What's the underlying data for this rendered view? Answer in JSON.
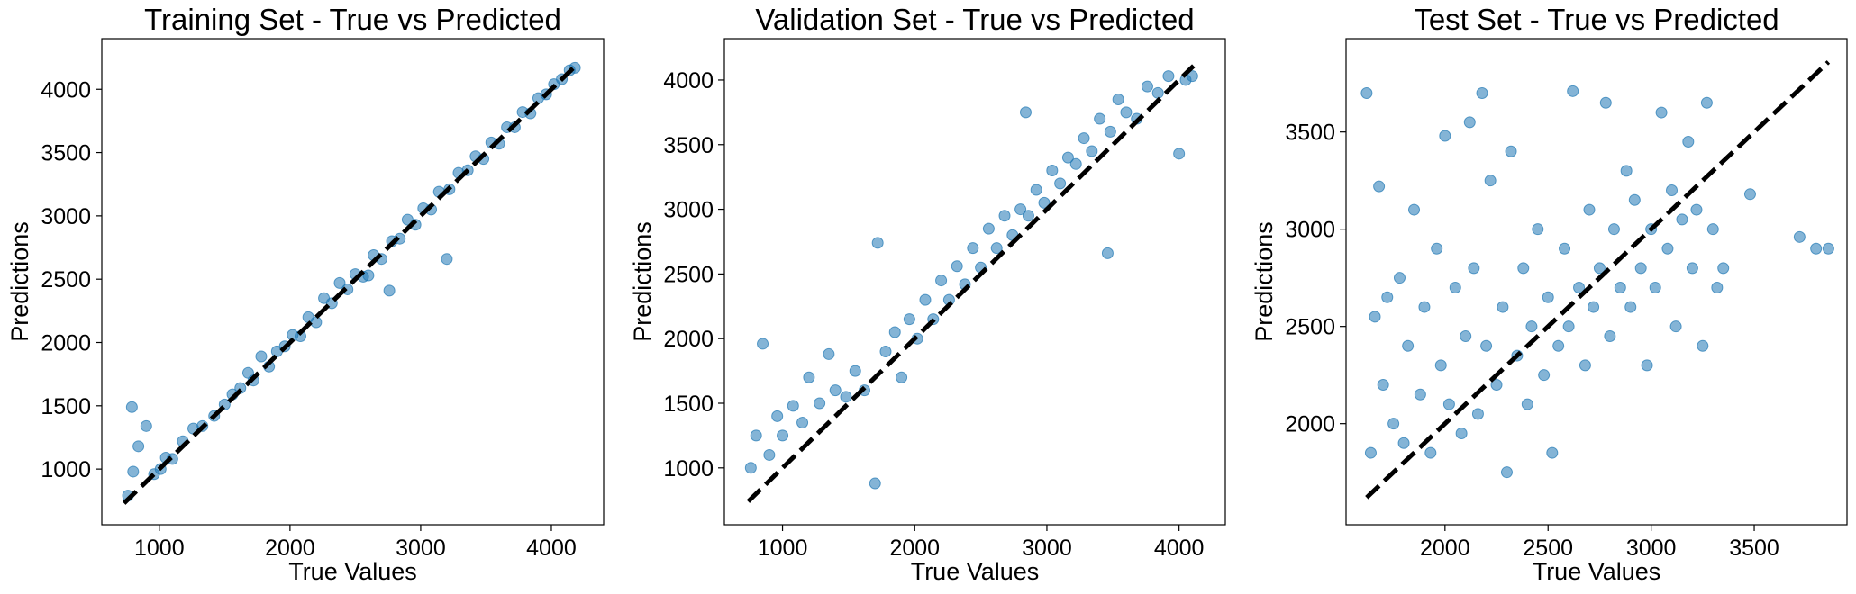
{
  "chart_data": [
    {
      "type": "scatter",
      "title": "Training Set - True vs Predicted",
      "xlabel": "True Values",
      "ylabel": "Predictions",
      "xlim": [
        560,
        4400
      ],
      "ylim": [
        560,
        4400
      ],
      "xticks": [
        1000,
        2000,
        3000,
        4000
      ],
      "yticks": [
        1000,
        1500,
        2000,
        2500,
        3000,
        3500,
        4000
      ],
      "xtick_labels": [
        "1000",
        "2000",
        "3000",
        "4000"
      ],
      "ytick_labels": [
        "1000",
        "1500",
        "2000",
        "2500",
        "3000",
        "3500",
        "4000"
      ],
      "identity_line": [
        730,
        4190
      ],
      "grid": false,
      "point_color": "#1f77b4",
      "series": [
        {
          "points": [
            [
              760,
              790
            ],
            [
              790,
              1490
            ],
            [
              800,
              980
            ],
            [
              840,
              1180
            ],
            [
              900,
              1340
            ],
            [
              960,
              960
            ],
            [
              1010,
              1000
            ],
            [
              1050,
              1090
            ],
            [
              1100,
              1080
            ],
            [
              1180,
              1220
            ],
            [
              1260,
              1320
            ],
            [
              1330,
              1340
            ],
            [
              1420,
              1420
            ],
            [
              1500,
              1510
            ],
            [
              1560,
              1590
            ],
            [
              1620,
              1640
            ],
            [
              1680,
              1760
            ],
            [
              1720,
              1700
            ],
            [
              1780,
              1890
            ],
            [
              1840,
              1810
            ],
            [
              1900,
              1930
            ],
            [
              1960,
              1970
            ],
            [
              2020,
              2060
            ],
            [
              2080,
              2050
            ],
            [
              2140,
              2200
            ],
            [
              2200,
              2160
            ],
            [
              2260,
              2350
            ],
            [
              2320,
              2310
            ],
            [
              2380,
              2470
            ],
            [
              2440,
              2420
            ],
            [
              2500,
              2540
            ],
            [
              2560,
              2520
            ],
            [
              2600,
              2530
            ],
            [
              2640,
              2690
            ],
            [
              2700,
              2660
            ],
            [
              2760,
              2410
            ],
            [
              2780,
              2800
            ],
            [
              2840,
              2820
            ],
            [
              2900,
              2970
            ],
            [
              2960,
              2930
            ],
            [
              3020,
              3060
            ],
            [
              3080,
              3050
            ],
            [
              3140,
              3190
            ],
            [
              3200,
              2660
            ],
            [
              3220,
              3210
            ],
            [
              3290,
              3340
            ],
            [
              3360,
              3360
            ],
            [
              3420,
              3470
            ],
            [
              3480,
              3450
            ],
            [
              3540,
              3580
            ],
            [
              3600,
              3570
            ],
            [
              3660,
              3700
            ],
            [
              3720,
              3700
            ],
            [
              3780,
              3820
            ],
            [
              3840,
              3810
            ],
            [
              3900,
              3930
            ],
            [
              3960,
              3960
            ],
            [
              4020,
              4040
            ],
            [
              4080,
              4080
            ],
            [
              4140,
              4150
            ],
            [
              4180,
              4170
            ]
          ]
        }
      ]
    },
    {
      "type": "scatter",
      "title": "Validation Set - True vs Predicted",
      "xlabel": "True Values",
      "ylabel": "Predictions",
      "xlim": [
        560,
        4350
      ],
      "ylim": [
        560,
        4320
      ],
      "xticks": [
        1000,
        2000,
        3000,
        4000
      ],
      "yticks": [
        1000,
        1500,
        2000,
        2500,
        3000,
        3500,
        4000
      ],
      "xtick_labels": [
        "1000",
        "2000",
        "3000",
        "4000"
      ],
      "ytick_labels": [
        "1000",
        "1500",
        "2000",
        "2500",
        "3000",
        "3500",
        "4000"
      ],
      "identity_line": [
        740,
        4110
      ],
      "grid": false,
      "point_color": "#1f77b4",
      "series": [
        {
          "points": [
            [
              760,
              1000
            ],
            [
              800,
              1250
            ],
            [
              850,
              1960
            ],
            [
              900,
              1100
            ],
            [
              960,
              1400
            ],
            [
              1000,
              1250
            ],
            [
              1080,
              1480
            ],
            [
              1150,
              1350
            ],
            [
              1200,
              1700
            ],
            [
              1280,
              1500
            ],
            [
              1350,
              1880
            ],
            [
              1400,
              1600
            ],
            [
              1480,
              1550
            ],
            [
              1550,
              1750
            ],
            [
              1620,
              1600
            ],
            [
              1700,
              880
            ],
            [
              1720,
              2740
            ],
            [
              1780,
              1900
            ],
            [
              1850,
              2050
            ],
            [
              1900,
              1700
            ],
            [
              1960,
              2150
            ],
            [
              2020,
              2000
            ],
            [
              2080,
              2300
            ],
            [
              2140,
              2150
            ],
            [
              2200,
              2450
            ],
            [
              2260,
              2300
            ],
            [
              2320,
              2560
            ],
            [
              2380,
              2420
            ],
            [
              2440,
              2700
            ],
            [
              2500,
              2550
            ],
            [
              2560,
              2850
            ],
            [
              2620,
              2700
            ],
            [
              2680,
              2950
            ],
            [
              2740,
              2800
            ],
            [
              2800,
              3000
            ],
            [
              2840,
              3750
            ],
            [
              2860,
              2950
            ],
            [
              2920,
              3150
            ],
            [
              2980,
              3050
            ],
            [
              3040,
              3300
            ],
            [
              3100,
              3200
            ],
            [
              3160,
              3400
            ],
            [
              3220,
              3350
            ],
            [
              3280,
              3550
            ],
            [
              3340,
              3450
            ],
            [
              3400,
              3700
            ],
            [
              3460,
              2660
            ],
            [
              3480,
              3600
            ],
            [
              3540,
              3850
            ],
            [
              3600,
              3750
            ],
            [
              3680,
              3700
            ],
            [
              3760,
              3950
            ],
            [
              3840,
              3900
            ],
            [
              3920,
              4030
            ],
            [
              4000,
              3430
            ],
            [
              4050,
              4000
            ],
            [
              4100,
              4030
            ]
          ]
        }
      ]
    },
    {
      "type": "scatter",
      "title": "Test Set - True vs Predicted",
      "xlabel": "True Values",
      "ylabel": "Predictions",
      "xlim": [
        1520,
        3950
      ],
      "ylim": [
        1480,
        3980
      ],
      "xticks": [
        2000,
        2500,
        3000,
        3500
      ],
      "yticks": [
        2000,
        2500,
        3000,
        3500
      ],
      "xtick_labels": [
        "2000",
        "2500",
        "3000",
        "3500"
      ],
      "ytick_labels": [
        "2000",
        "2500",
        "3000",
        "3500"
      ],
      "identity_line": [
        1620,
        3860
      ],
      "grid": false,
      "point_color": "#1f77b4",
      "series": [
        {
          "points": [
            [
              1620,
              3700
            ],
            [
              1640,
              1850
            ],
            [
              1660,
              2550
            ],
            [
              1680,
              3220
            ],
            [
              1700,
              2200
            ],
            [
              1720,
              2650
            ],
            [
              1750,
              2000
            ],
            [
              1780,
              2750
            ],
            [
              1800,
              1900
            ],
            [
              1820,
              2400
            ],
            [
              1850,
              3100
            ],
            [
              1880,
              2150
            ],
            [
              1900,
              2600
            ],
            [
              1930,
              1850
            ],
            [
              1960,
              2900
            ],
            [
              1980,
              2300
            ],
            [
              2000,
              3480
            ],
            [
              2020,
              2100
            ],
            [
              2050,
              2700
            ],
            [
              2080,
              1950
            ],
            [
              2100,
              2450
            ],
            [
              2120,
              3550
            ],
            [
              2140,
              2800
            ],
            [
              2160,
              2050
            ],
            [
              2180,
              3700
            ],
            [
              2200,
              2400
            ],
            [
              2220,
              3250
            ],
            [
              2250,
              2200
            ],
            [
              2280,
              2600
            ],
            [
              2300,
              1750
            ],
            [
              2320,
              3400
            ],
            [
              2350,
              2350
            ],
            [
              2380,
              2800
            ],
            [
              2400,
              2100
            ],
            [
              2420,
              2500
            ],
            [
              2450,
              3000
            ],
            [
              2480,
              2250
            ],
            [
              2500,
              2650
            ],
            [
              2520,
              1850
            ],
            [
              2550,
              2400
            ],
            [
              2580,
              2900
            ],
            [
              2600,
              2500
            ],
            [
              2620,
              3710
            ],
            [
              2650,
              2700
            ],
            [
              2680,
              2300
            ],
            [
              2700,
              3100
            ],
            [
              2720,
              2600
            ],
            [
              2750,
              2800
            ],
            [
              2780,
              3650
            ],
            [
              2800,
              2450
            ],
            [
              2820,
              3000
            ],
            [
              2850,
              2700
            ],
            [
              2880,
              3300
            ],
            [
              2900,
              2600
            ],
            [
              2920,
              3150
            ],
            [
              2950,
              2800
            ],
            [
              2980,
              2300
            ],
            [
              3000,
              3000
            ],
            [
              3020,
              2700
            ],
            [
              3050,
              3600
            ],
            [
              3080,
              2900
            ],
            [
              3100,
              3200
            ],
            [
              3120,
              2500
            ],
            [
              3150,
              3050
            ],
            [
              3180,
              3450
            ],
            [
              3200,
              2800
            ],
            [
              3220,
              3100
            ],
            [
              3250,
              2400
            ],
            [
              3270,
              3650
            ],
            [
              3300,
              3000
            ],
            [
              3320,
              2700
            ],
            [
              3350,
              2800
            ],
            [
              3480,
              3180
            ],
            [
              3720,
              2960
            ],
            [
              3800,
              2900
            ],
            [
              3860,
              2900
            ]
          ]
        }
      ]
    }
  ]
}
